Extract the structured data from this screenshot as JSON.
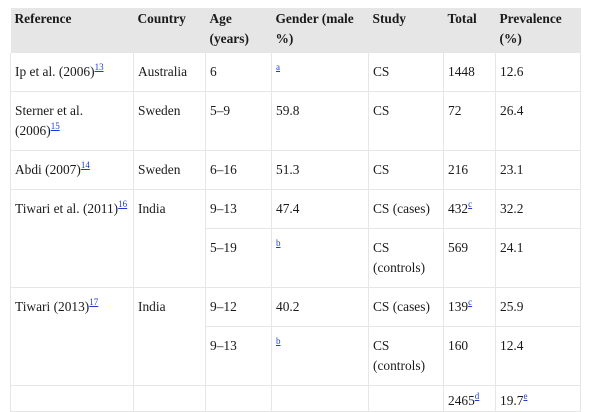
{
  "table": {
    "headers": [
      "Reference",
      "Country",
      "Age (years)",
      "Gender (male %)",
      "Study",
      "Total",
      "Prevalence (%)"
    ],
    "rows": [
      {
        "reference": "Ip et al. (2006)",
        "ref_sup": "13",
        "country": "Australia",
        "age": "6",
        "gender": "",
        "gender_sup": "a",
        "study": "CS",
        "total": "1448",
        "total_sup": "",
        "prevalence": "12.6",
        "prev_sup": ""
      },
      {
        "reference": "Sterner et al. (2006)",
        "ref_sup": "15",
        "country": "Sweden",
        "age": "5–9",
        "gender": "59.8",
        "gender_sup": "",
        "study": "CS",
        "total": "72",
        "total_sup": "",
        "prevalence": "26.4",
        "prev_sup": ""
      },
      {
        "reference": "Abdi (2007)",
        "ref_sup": "14",
        "country": "Sweden",
        "age": "6–16",
        "gender": "51.3",
        "gender_sup": "",
        "study": "CS",
        "total": "216",
        "total_sup": "",
        "prevalence": "23.1",
        "prev_sup": ""
      },
      {
        "reference": "Tiwari et al. (2011)",
        "ref_sup": "16",
        "country": "India",
        "age": "9–13",
        "gender": "47.4",
        "gender_sup": "",
        "study": "CS (cases)",
        "total": "432",
        "total_sup": "c",
        "prevalence": "32.2",
        "prev_sup": ""
      },
      {
        "reference": "",
        "ref_sup": "",
        "country": "",
        "age": "5–19",
        "gender": "",
        "gender_sup": "b",
        "study": "CS (controls)",
        "total": "569",
        "total_sup": "",
        "prevalence": "24.1",
        "prev_sup": ""
      },
      {
        "reference": "Tiwari (2013)",
        "ref_sup": "17",
        "country": "India",
        "age": "9–12",
        "gender": "40.2",
        "gender_sup": "",
        "study": "CS (cases)",
        "total": "139",
        "total_sup": "c",
        "prevalence": "25.9",
        "prev_sup": ""
      },
      {
        "reference": "",
        "ref_sup": "",
        "country": "",
        "age": "9–13",
        "gender": "",
        "gender_sup": "b",
        "study": "CS (controls)",
        "total": "160",
        "total_sup": "",
        "prevalence": "12.4",
        "prev_sup": ""
      },
      {
        "reference": "",
        "ref_sup": "",
        "country": "",
        "age": "",
        "gender": "",
        "gender_sup": "",
        "study": "",
        "total": "2465",
        "total_sup": "d",
        "prevalence": "19.7",
        "prev_sup": "e"
      }
    ]
  }
}
